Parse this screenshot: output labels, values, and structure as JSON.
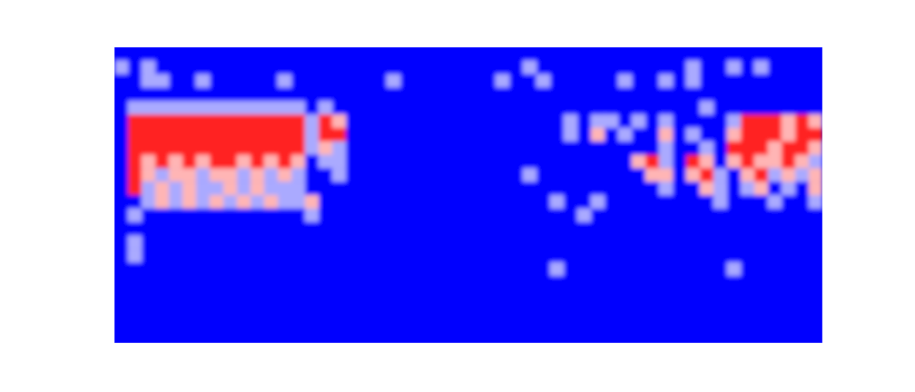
{
  "chart_data": {
    "type": "heatmap",
    "tick_labels": false,
    "zlim": [
      0,
      3
    ],
    "cells": [
      [
        0,
        0,
        0,
        0,
        0,
        0,
        0,
        0,
        0,
        0,
        0,
        0,
        0,
        0,
        0,
        0,
        0,
        0,
        0,
        0,
        0,
        0,
        0,
        0,
        0,
        0,
        0,
        0,
        0,
        0,
        0,
        0,
        0,
        0,
        0,
        0,
        0,
        0,
        0,
        0,
        0,
        0,
        0,
        0,
        0,
        0,
        0,
        0,
        0,
        0,
        0,
        0
      ],
      [
        1,
        0,
        1,
        0,
        0,
        0,
        0,
        0,
        0,
        0,
        0,
        0,
        0,
        0,
        0,
        0,
        0,
        0,
        0,
        0,
        0,
        0,
        0,
        0,
        0,
        0,
        0,
        0,
        0,
        0,
        1,
        0,
        0,
        0,
        0,
        0,
        0,
        0,
        0,
        0,
        0,
        0,
        1,
        0,
        0,
        1,
        0,
        1,
        0,
        0,
        0,
        0
      ],
      [
        0,
        0,
        1,
        1,
        0,
        0,
        1,
        0,
        0,
        0,
        0,
        0,
        1,
        0,
        0,
        0,
        0,
        0,
        0,
        0,
        1,
        0,
        0,
        0,
        0,
        0,
        0,
        0,
        1,
        0,
        0,
        1,
        0,
        0,
        0,
        0,
        0,
        1,
        0,
        0,
        1,
        0,
        1,
        0,
        0,
        0,
        0,
        0,
        0,
        0,
        0,
        0
      ],
      [
        0,
        0,
        0,
        0,
        0,
        0,
        0,
        0,
        0,
        0,
        0,
        0,
        0,
        0,
        0,
        0,
        0,
        0,
        0,
        0,
        0,
        0,
        0,
        0,
        0,
        0,
        0,
        0,
        0,
        0,
        0,
        0,
        0,
        0,
        0,
        0,
        0,
        0,
        0,
        0,
        0,
        0,
        0,
        0,
        0,
        0,
        0,
        0,
        0,
        0,
        0,
        0
      ],
      [
        0,
        1,
        1,
        1,
        1,
        1,
        1,
        1,
        1,
        1,
        1,
        1,
        1,
        1,
        0,
        1,
        0,
        0,
        0,
        0,
        0,
        0,
        0,
        0,
        0,
        0,
        0,
        0,
        0,
        0,
        0,
        0,
        0,
        0,
        0,
        0,
        0,
        0,
        0,
        0,
        0,
        0,
        0,
        1,
        0,
        0,
        0,
        0,
        0,
        0,
        0,
        0
      ],
      [
        0,
        3,
        3,
        3,
        3,
        3,
        3,
        3,
        3,
        3,
        3,
        3,
        3,
        3,
        1,
        3,
        2,
        0,
        0,
        0,
        0,
        0,
        0,
        0,
        0,
        0,
        0,
        0,
        0,
        0,
        0,
        0,
        0,
        1,
        0,
        1,
        1,
        0,
        1,
        0,
        1,
        0,
        0,
        0,
        0,
        1,
        3,
        3,
        3,
        2,
        3,
        2
      ],
      [
        0,
        3,
        3,
        3,
        3,
        3,
        3,
        3,
        3,
        3,
        3,
        3,
        3,
        3,
        1,
        3,
        3,
        0,
        0,
        0,
        0,
        0,
        0,
        0,
        0,
        0,
        0,
        0,
        0,
        0,
        0,
        0,
        0,
        1,
        0,
        2,
        0,
        1,
        0,
        0,
        2,
        0,
        1,
        0,
        0,
        2,
        3,
        3,
        3,
        2,
        3,
        3
      ],
      [
        0,
        3,
        3,
        3,
        3,
        3,
        3,
        3,
        3,
        3,
        3,
        3,
        3,
        3,
        1,
        2,
        1,
        0,
        0,
        0,
        0,
        0,
        0,
        0,
        0,
        0,
        0,
        0,
        0,
        0,
        0,
        0,
        0,
        0,
        0,
        0,
        0,
        0,
        0,
        0,
        1,
        0,
        0,
        1,
        0,
        3,
        3,
        3,
        2,
        3,
        3,
        2
      ],
      [
        0,
        3,
        2,
        3,
        2,
        3,
        2,
        3,
        3,
        2,
        3,
        2,
        3,
        2,
        0,
        1,
        1,
        0,
        0,
        0,
        0,
        0,
        0,
        0,
        0,
        0,
        0,
        0,
        0,
        0,
        0,
        0,
        0,
        0,
        0,
        0,
        0,
        0,
        2,
        3,
        1,
        0,
        3,
        2,
        0,
        2,
        3,
        2,
        2,
        3,
        2,
        1
      ],
      [
        0,
        3,
        2,
        1,
        2,
        2,
        1,
        2,
        2,
        1,
        2,
        1,
        2,
        1,
        0,
        0,
        1,
        0,
        0,
        0,
        0,
        0,
        0,
        0,
        0,
        0,
        0,
        0,
        0,
        0,
        1,
        0,
        0,
        0,
        0,
        0,
        0,
        0,
        0,
        2,
        2,
        0,
        2,
        3,
        1,
        0,
        2,
        3,
        1,
        2,
        1,
        2
      ],
      [
        0,
        3,
        1,
        2,
        1,
        2,
        1,
        1,
        2,
        1,
        2,
        1,
        1,
        1,
        0,
        0,
        0,
        0,
        0,
        0,
        0,
        0,
        0,
        0,
        0,
        0,
        0,
        0,
        0,
        0,
        0,
        0,
        0,
        0,
        0,
        0,
        0,
        0,
        0,
        0,
        1,
        0,
        0,
        2,
        1,
        0,
        1,
        2,
        0,
        1,
        0,
        2
      ],
      [
        0,
        0,
        1,
        2,
        1,
        2,
        1,
        2,
        1,
        2,
        1,
        2,
        1,
        1,
        2,
        0,
        0,
        0,
        0,
        0,
        0,
        0,
        0,
        0,
        0,
        0,
        0,
        0,
        0,
        0,
        0,
        0,
        1,
        0,
        0,
        1,
        0,
        0,
        0,
        0,
        0,
        0,
        0,
        0,
        1,
        0,
        0,
        0,
        1,
        0,
        0,
        1
      ],
      [
        0,
        1,
        0,
        0,
        0,
        0,
        0,
        0,
        0,
        0,
        0,
        0,
        0,
        0,
        1,
        0,
        0,
        0,
        0,
        0,
        0,
        0,
        0,
        0,
        0,
        0,
        0,
        0,
        0,
        0,
        0,
        0,
        0,
        0,
        1,
        0,
        0,
        0,
        0,
        0,
        0,
        0,
        0,
        0,
        0,
        0,
        0,
        0,
        0,
        0,
        0,
        0
      ],
      [
        0,
        0,
        0,
        0,
        0,
        0,
        0,
        0,
        0,
        0,
        0,
        0,
        0,
        0,
        0,
        0,
        0,
        0,
        0,
        0,
        0,
        0,
        0,
        0,
        0,
        0,
        0,
        0,
        0,
        0,
        0,
        0,
        0,
        0,
        0,
        0,
        0,
        0,
        0,
        0,
        0,
        0,
        0,
        0,
        0,
        0,
        0,
        0,
        0,
        0,
        0,
        0
      ],
      [
        0,
        1,
        0,
        0,
        0,
        0,
        0,
        0,
        0,
        0,
        0,
        0,
        0,
        0,
        0,
        0,
        0,
        0,
        0,
        0,
        0,
        0,
        0,
        0,
        0,
        0,
        0,
        0,
        0,
        0,
        0,
        0,
        0,
        0,
        0,
        0,
        0,
        0,
        0,
        0,
        0,
        0,
        0,
        0,
        0,
        0,
        0,
        0,
        0,
        0,
        0,
        0
      ],
      [
        0,
        1,
        0,
        0,
        0,
        0,
        0,
        0,
        0,
        0,
        0,
        0,
        0,
        0,
        0,
        0,
        0,
        0,
        0,
        0,
        0,
        0,
        0,
        0,
        0,
        0,
        0,
        0,
        0,
        0,
        0,
        0,
        0,
        0,
        0,
        0,
        0,
        0,
        0,
        0,
        0,
        0,
        0,
        0,
        0,
        0,
        0,
        0,
        0,
        0,
        0,
        0
      ],
      [
        0,
        0,
        0,
        0,
        0,
        0,
        0,
        0,
        0,
        0,
        0,
        0,
        0,
        0,
        0,
        0,
        0,
        0,
        0,
        0,
        0,
        0,
        0,
        0,
        0,
        0,
        0,
        0,
        0,
        0,
        0,
        0,
        1,
        0,
        0,
        0,
        0,
        0,
        0,
        0,
        0,
        0,
        0,
        0,
        0,
        1,
        0,
        0,
        0,
        0,
        0,
        0
      ],
      [
        0,
        0,
        0,
        0,
        0,
        0,
        0,
        0,
        0,
        0,
        0,
        0,
        0,
        0,
        0,
        0,
        0,
        0,
        0,
        0,
        0,
        0,
        0,
        0,
        0,
        0,
        0,
        0,
        0,
        0,
        0,
        0,
        0,
        0,
        0,
        0,
        0,
        0,
        0,
        0,
        0,
        0,
        0,
        0,
        0,
        0,
        0,
        0,
        0,
        0,
        0,
        0
      ],
      [
        0,
        0,
        0,
        0,
        0,
        0,
        0,
        0,
        0,
        0,
        0,
        0,
        0,
        0,
        0,
        0,
        0,
        0,
        0,
        0,
        0,
        0,
        0,
        0,
        0,
        0,
        0,
        0,
        0,
        0,
        0,
        0,
        0,
        0,
        0,
        0,
        0,
        0,
        0,
        0,
        0,
        0,
        0,
        0,
        0,
        0,
        0,
        0,
        0,
        0,
        0,
        0
      ],
      [
        0,
        0,
        0,
        0,
        0,
        0,
        0,
        0,
        0,
        0,
        0,
        0,
        0,
        0,
        0,
        0,
        0,
        0,
        0,
        0,
        0,
        0,
        0,
        0,
        0,
        0,
        0,
        0,
        0,
        0,
        0,
        0,
        0,
        0,
        0,
        0,
        0,
        0,
        0,
        0,
        0,
        0,
        0,
        0,
        0,
        0,
        0,
        0,
        0,
        0,
        0,
        0
      ],
      [
        0,
        0,
        0,
        0,
        0,
        0,
        0,
        0,
        0,
        0,
        0,
        0,
        0,
        0,
        0,
        0,
        0,
        0,
        0,
        0,
        0,
        0,
        0,
        0,
        0,
        0,
        0,
        0,
        0,
        0,
        0,
        0,
        0,
        0,
        0,
        0,
        0,
        0,
        0,
        0,
        0,
        0,
        0,
        0,
        0,
        0,
        0,
        0,
        0,
        0,
        0,
        0
      ],
      [
        0,
        0,
        0,
        0,
        0,
        0,
        0,
        0,
        0,
        0,
        0,
        0,
        0,
        0,
        0,
        0,
        0,
        0,
        0,
        0,
        0,
        0,
        0,
        0,
        0,
        0,
        0,
        0,
        0,
        0,
        0,
        0,
        0,
        0,
        0,
        0,
        0,
        0,
        0,
        0,
        0,
        0,
        0,
        0,
        0,
        0,
        0,
        0,
        0,
        0,
        0,
        0
      ]
    ]
  }
}
